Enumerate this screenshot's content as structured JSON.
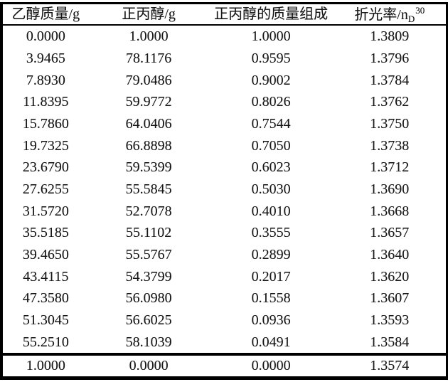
{
  "table": {
    "columns": [
      {
        "label": "乙醇质量/g"
      },
      {
        "label": "正丙醇/g"
      },
      {
        "label": "正丙醇的质量组成"
      },
      {
        "label_prefix": "折光率/n",
        "label_sub": "D",
        "label_sup": "30"
      }
    ],
    "rows": [
      [
        "0.0000",
        "1.0000",
        "1.0000",
        "1.3809"
      ],
      [
        "3.9465",
        "78.1176",
        "0.9595",
        "1.3796"
      ],
      [
        "7.8930",
        "79.0486",
        "0.9002",
        "1.3784"
      ],
      [
        "11.8395",
        "59.9772",
        "0.8026",
        "1.3762"
      ],
      [
        "15.7860",
        "64.0406",
        "0.7544",
        "1.3750"
      ],
      [
        "19.7325",
        "66.8898",
        "0.7050",
        "1.3738"
      ],
      [
        "23.6790",
        "59.5399",
        "0.6023",
        "1.3712"
      ],
      [
        "27.6255",
        "55.5845",
        "0.5030",
        "1.3690"
      ],
      [
        "31.5720",
        "52.7078",
        "0.4010",
        "1.3668"
      ],
      [
        "35.5185",
        "55.1102",
        "0.3555",
        "1.3657"
      ],
      [
        "39.4650",
        "55.5767",
        "0.2899",
        "1.3640"
      ],
      [
        "43.4115",
        "54.3799",
        "0.2017",
        "1.3620"
      ],
      [
        "47.3580",
        "56.0980",
        "0.1558",
        "1.3607"
      ],
      [
        "51.3045",
        "56.6025",
        "0.0936",
        "1.3593"
      ],
      [
        "55.2510",
        "58.1039",
        "0.0491",
        "1.3584"
      ]
    ],
    "footer_row": [
      "1.0000",
      "0.0000",
      "0.0000",
      "1.3574"
    ],
    "border_color": "#000000",
    "text_color": "#161616"
  }
}
